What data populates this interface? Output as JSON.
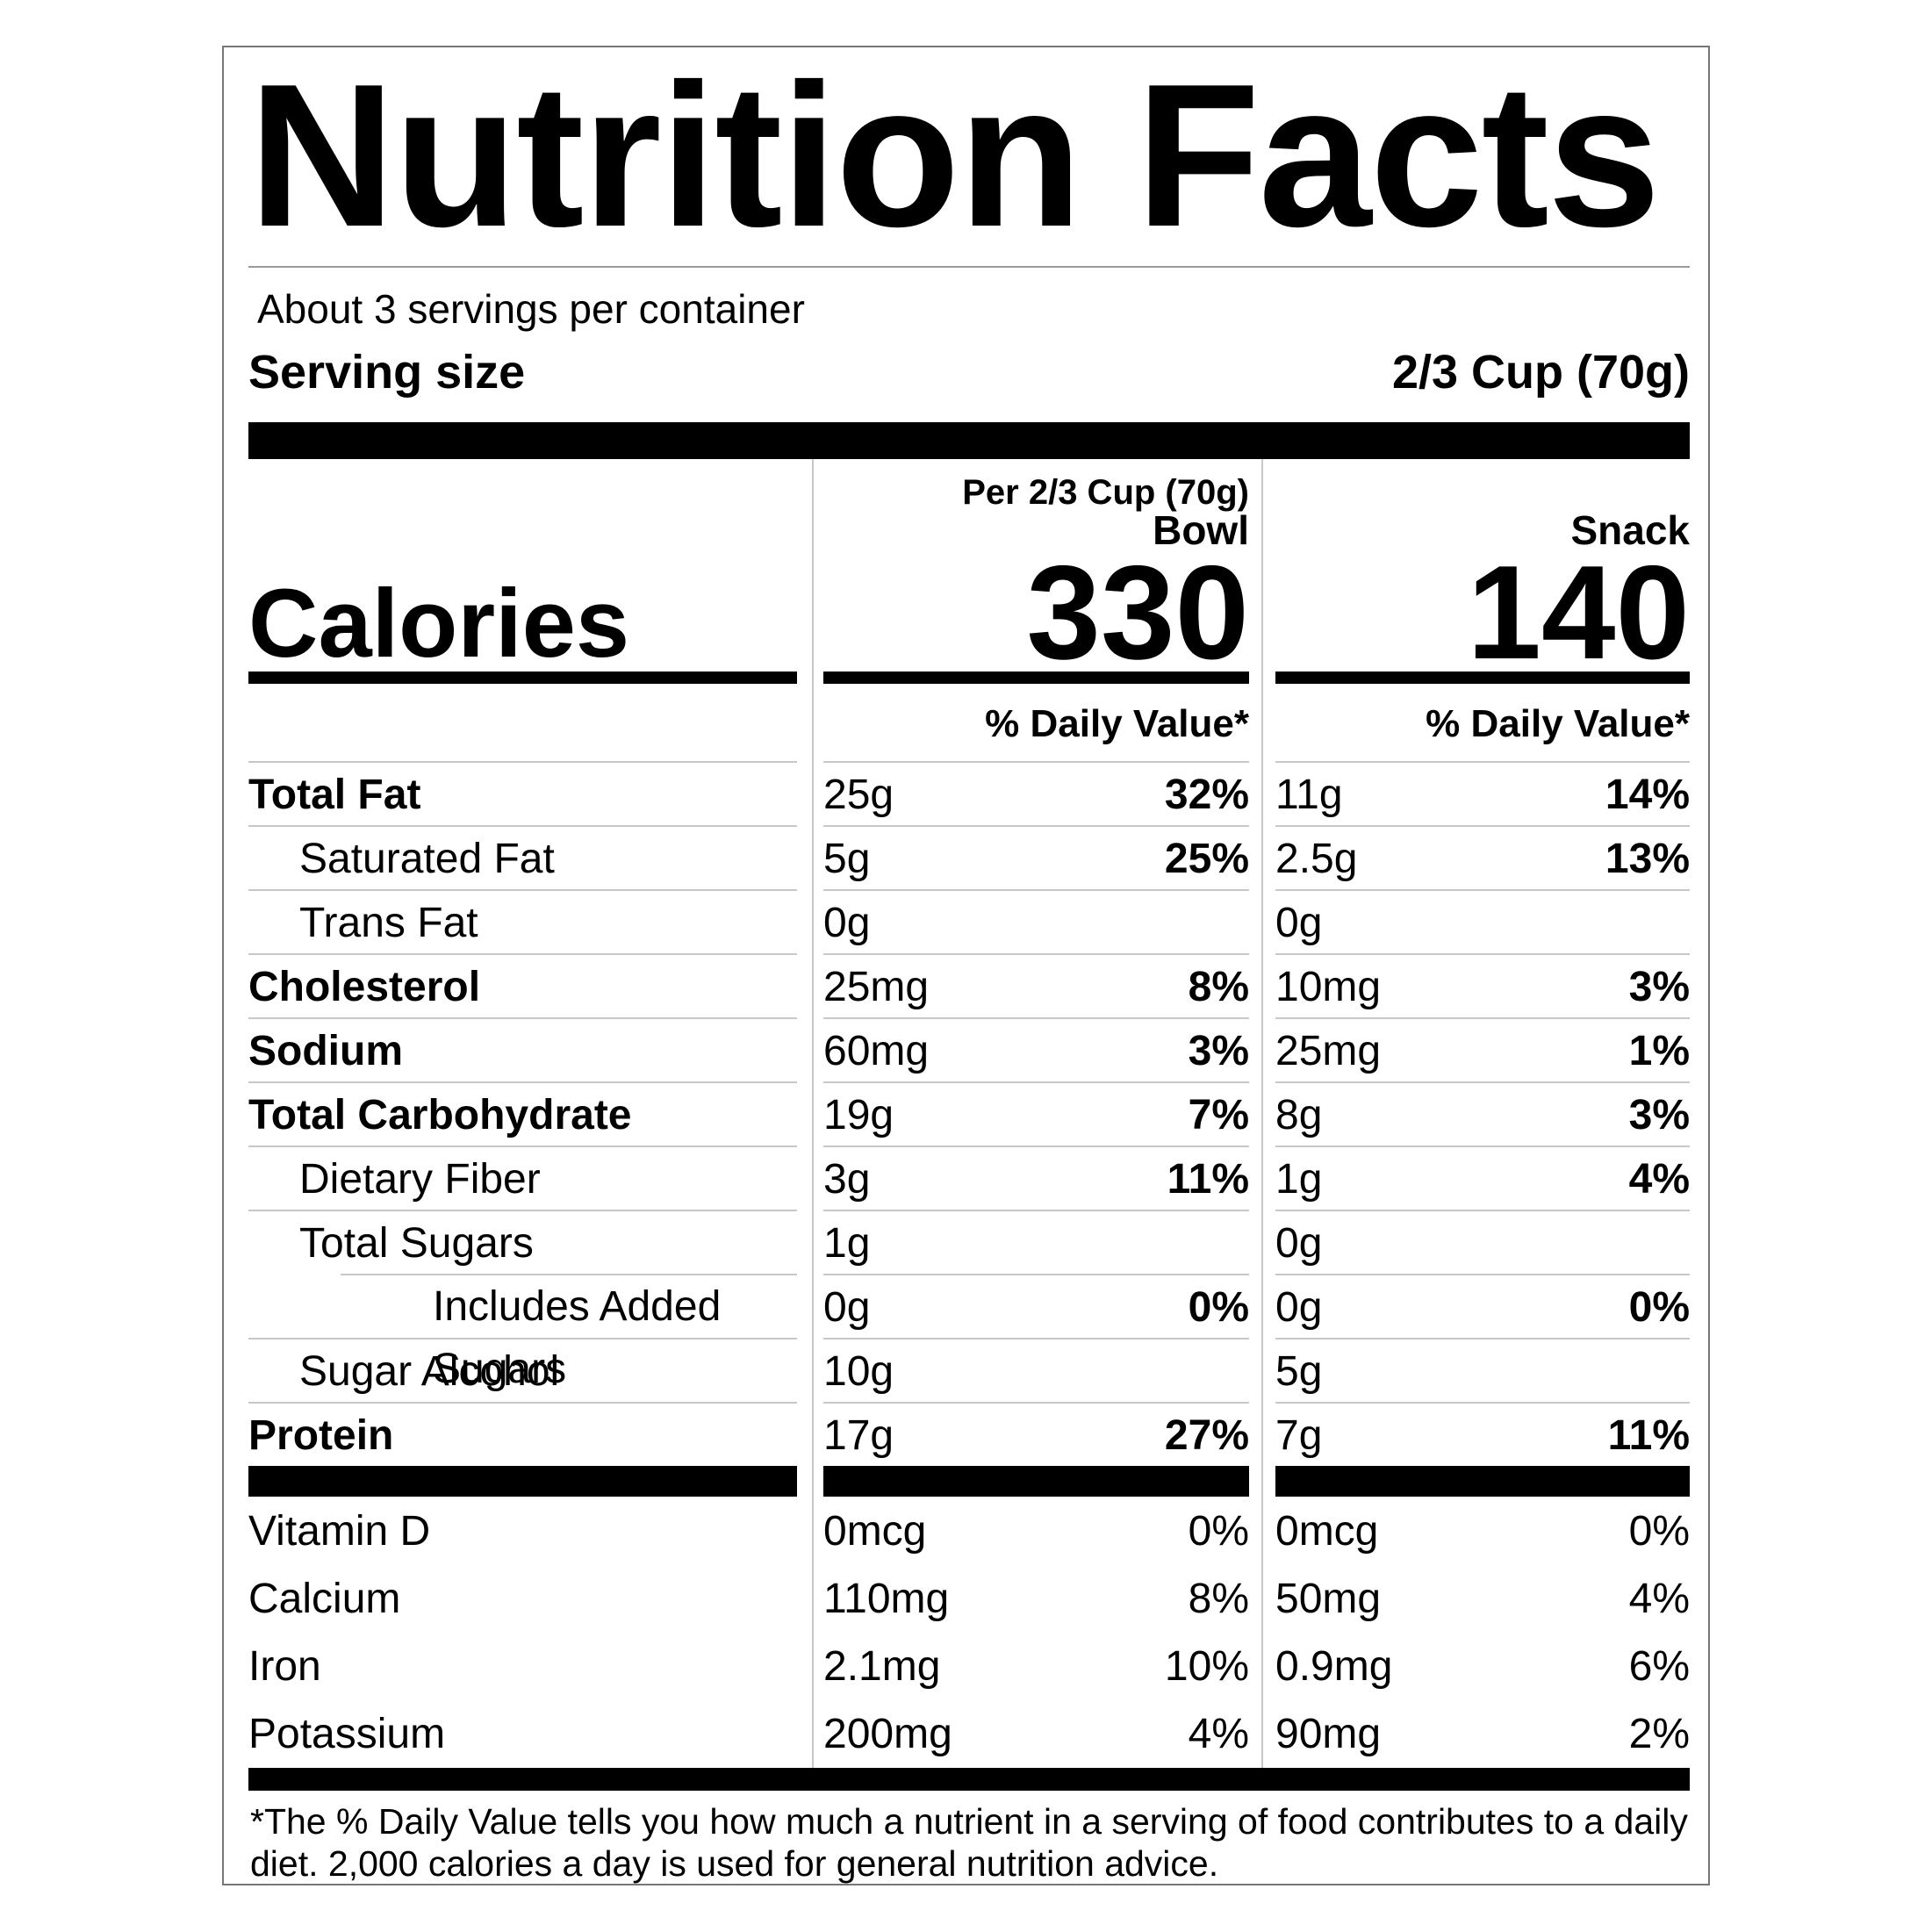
{
  "label": {
    "title": "Nutrition Facts",
    "servings_per_container": "About 3 servings per container",
    "serving_size_label": "Serving size",
    "serving_size_value": "2/3 Cup (70g)",
    "per_serving_note": "Per 2/3 Cup (70g)",
    "columns": [
      {
        "name": "Bowl",
        "calories": "330"
      },
      {
        "name": "Snack",
        "calories": "140"
      }
    ],
    "calories_label": "Calories",
    "daily_value_header": "% Daily Value*",
    "rows": [
      {
        "name": "Total Fat",
        "indent": 0,
        "bold": true,
        "inset_rule": false,
        "bowl_amount": "25g",
        "bowl_dv": "32%",
        "snack_amount": "11g",
        "snack_dv": "14%"
      },
      {
        "name": "Saturated Fat",
        "indent": 1,
        "bold": false,
        "inset_rule": false,
        "bowl_amount": "5g",
        "bowl_dv": "25%",
        "snack_amount": "2.5g",
        "snack_dv": "13%"
      },
      {
        "name": "Trans Fat",
        "indent": 1,
        "bold": false,
        "inset_rule": false,
        "bowl_amount": "0g",
        "bowl_dv": "",
        "snack_amount": "0g",
        "snack_dv": ""
      },
      {
        "name": "Cholesterol",
        "indent": 0,
        "bold": true,
        "inset_rule": false,
        "bowl_amount": "25mg",
        "bowl_dv": "8%",
        "snack_amount": "10mg",
        "snack_dv": "3%"
      },
      {
        "name": "Sodium",
        "indent": 0,
        "bold": true,
        "inset_rule": false,
        "bowl_amount": "60mg",
        "bowl_dv": "3%",
        "snack_amount": "25mg",
        "snack_dv": "1%"
      },
      {
        "name": "Total Carbohydrate",
        "indent": 0,
        "bold": true,
        "inset_rule": false,
        "bowl_amount": "19g",
        "bowl_dv": "7%",
        "snack_amount": "8g",
        "snack_dv": "3%"
      },
      {
        "name": "Dietary Fiber",
        "indent": 1,
        "bold": false,
        "inset_rule": false,
        "bowl_amount": "3g",
        "bowl_dv": "11%",
        "snack_amount": "1g",
        "snack_dv": "4%"
      },
      {
        "name": "Total Sugars",
        "indent": 1,
        "bold": false,
        "inset_rule": false,
        "bowl_amount": "1g",
        "bowl_dv": "",
        "snack_amount": "0g",
        "snack_dv": ""
      },
      {
        "name": "Includes Added Sugars",
        "indent": 2,
        "bold": false,
        "inset_rule": true,
        "bowl_amount": "0g",
        "bowl_dv": "0%",
        "snack_amount": "0g",
        "snack_dv": "0%"
      },
      {
        "name": "Sugar Alcohol",
        "indent": 1,
        "bold": false,
        "inset_rule": false,
        "bowl_amount": "10g",
        "bowl_dv": "",
        "snack_amount": "5g",
        "snack_dv": ""
      },
      {
        "name": "Protein",
        "indent": 0,
        "bold": true,
        "inset_rule": false,
        "bowl_amount": "17g",
        "bowl_dv": "27%",
        "snack_amount": "7g",
        "snack_dv": "11%"
      }
    ],
    "vitamins": [
      {
        "name": "Vitamin D",
        "bowl_amount": "0mcg",
        "bowl_dv": "0%",
        "snack_amount": "0mcg",
        "snack_dv": "0%"
      },
      {
        "name": "Calcium",
        "bowl_amount": "110mg",
        "bowl_dv": "8%",
        "snack_amount": "50mg",
        "snack_dv": "4%"
      },
      {
        "name": "Iron",
        "bowl_amount": "2.1mg",
        "bowl_dv": "10%",
        "snack_amount": "0.9mg",
        "snack_dv": "6%"
      },
      {
        "name": "Potassium",
        "bowl_amount": "200mg",
        "bowl_dv": "4%",
        "snack_amount": "90mg",
        "snack_dv": "2%"
      }
    ],
    "footnote": "*The % Daily Value tells you how much a nutrient in a serving of food contributes to a daily diet. 2,000 calories a day is used for general nutrition advice.",
    "colors": {
      "text": "#000000",
      "bars": "#000000",
      "hairline": "#c8c8c8",
      "border": "#777777",
      "background": "#ffffff"
    }
  }
}
